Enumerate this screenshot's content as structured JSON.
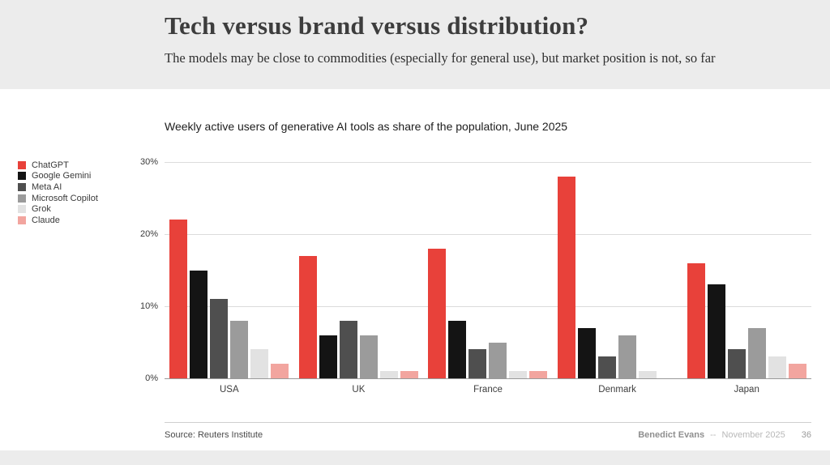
{
  "slide": {
    "title": "Tech versus brand versus distribution?",
    "subtitle": "The models may be close to commodities (especially for general use), but market position is not, so far",
    "footer": {
      "source": "Source: Reuters Institute",
      "author": "Benedict Evans",
      "separator": "--",
      "date": "November 2025",
      "page": "36"
    }
  },
  "chart_data": {
    "type": "bar",
    "title": "Weekly active users of generative AI tools as share of the population, June 2025",
    "categories": [
      "USA",
      "UK",
      "France",
      "Denmark",
      "Japan"
    ],
    "series": [
      {
        "name": "ChatGPT",
        "color": "#e8413a",
        "values": [
          22,
          17,
          18,
          28,
          16
        ]
      },
      {
        "name": "Google Gemini",
        "color": "#141414",
        "values": [
          15,
          6,
          8,
          7,
          13
        ]
      },
      {
        "name": "Meta AI",
        "color": "#4f4f4f",
        "values": [
          11,
          8,
          4,
          3,
          4
        ]
      },
      {
        "name": "Microsoft Copilot",
        "color": "#9b9b9b",
        "values": [
          8,
          6,
          5,
          6,
          7
        ]
      },
      {
        "name": "Grok",
        "color": "#e2e2e2",
        "values": [
          4,
          1,
          1,
          1,
          3
        ]
      },
      {
        "name": "Claude",
        "color": "#f2a59f",
        "values": [
          2,
          1,
          1,
          0,
          2
        ]
      }
    ],
    "xlabel": "",
    "ylabel": "",
    "ylim": [
      0,
      30
    ],
    "y_ticks": [
      "0%",
      "10%",
      "20%",
      "30%"
    ],
    "grid": true,
    "legend_position": "left"
  }
}
